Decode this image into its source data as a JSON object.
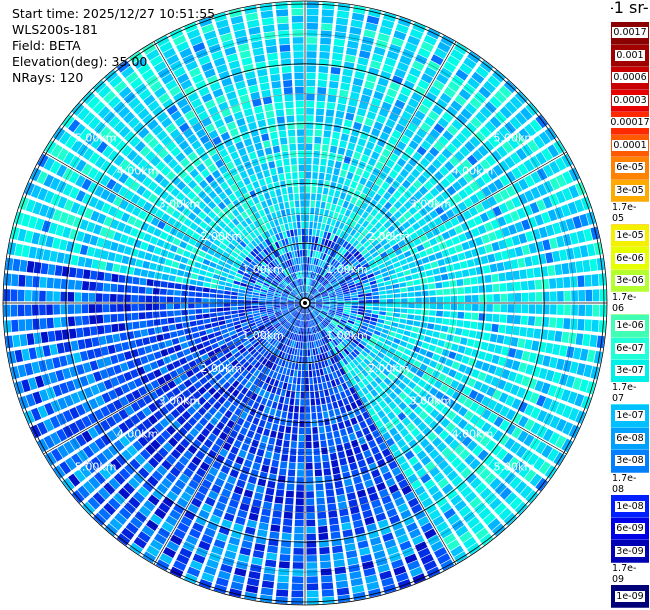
{
  "info": {
    "start_time": "Start time: 2025/12/27 10:51:55",
    "instrument": "WLS200s-181",
    "field": "Field: BETA",
    "elevation": "Elevation(deg): 35.00",
    "nrays": "NRays: 120"
  },
  "colorbar": {
    "title_fragment": "-1 sr-",
    "labels": [
      "0.0017",
      "0.001",
      "0.0006",
      "0.0003",
      "0.00017",
      "0.0001",
      "6e-05",
      "3e-05",
      "1.7e-05",
      "1e-05",
      "6e-06",
      "3e-06",
      "1.7e-06",
      "1e-06",
      "6e-07",
      "3e-07",
      "1.7e-07",
      "1e-07",
      "6e-08",
      "3e-08",
      "1.7e-08",
      "1e-08",
      "6e-09",
      "3e-09",
      "1.7e-09",
      "1e-09"
    ],
    "colors": [
      "#8b0000",
      "#a00000",
      "#c80000",
      "#e60000",
      "#ff2a00",
      "#ff5a00",
      "#ff8200",
      "#ffaa00",
      "#ffc800",
      "#f5f000",
      "#e6ff00",
      "#b4ff30",
      "#78ff78",
      "#40ffb4",
      "#20ffd8",
      "#00f0e8",
      "#00d8f5",
      "#00c0ff",
      "#00a0ff",
      "#0080ff",
      "#0050ff",
      "#0020ff",
      "#0000e6",
      "#0000b4",
      "#000096",
      "#000078"
    ]
  },
  "chart_data": {
    "type": "heatmap",
    "subtype": "polar PPI scan",
    "field": "BETA",
    "elevation_deg": 35.0,
    "n_rays": 120,
    "range_rings_km": [
      1.0,
      2.0,
      3.0,
      4.0,
      5.0
    ],
    "range_ring_labels": [
      "1.00km",
      "2.00km",
      "3.00km",
      "4.00km",
      "5.00km"
    ],
    "max_range_km": 5.0,
    "azimuth_spokes_deg": [
      0,
      30,
      60,
      90,
      120,
      150,
      180,
      210,
      240,
      270,
      300,
      330
    ],
    "sectors": [
      {
        "azimuth_from_deg": 0,
        "azimuth_to_deg": 150,
        "typical_value": "3e-07",
        "description_key": "cyan"
      },
      {
        "azimuth_from_deg": 150,
        "azimuth_to_deg": 280,
        "typical_value": "1e-08",
        "description_key": "blue"
      },
      {
        "azimuth_from_deg": 280,
        "azimuth_to_deg": 360,
        "typical_value": "3e-07",
        "description_key": "cyan"
      }
    ],
    "colorbar_ticks": [
      "0.0017",
      "0.001",
      "0.0006",
      "0.0003",
      "0.00017",
      "0.0001",
      "6e-05",
      "3e-05",
      "1.7e-05",
      "1e-05",
      "6e-06",
      "3e-06",
      "1.7e-06",
      "1e-06",
      "6e-07",
      "3e-07",
      "1.7e-07",
      "1e-07",
      "6e-08",
      "3e-08",
      "1.7e-08",
      "1e-08",
      "6e-09",
      "3e-09",
      "1.7e-09",
      "1e-09"
    ]
  }
}
